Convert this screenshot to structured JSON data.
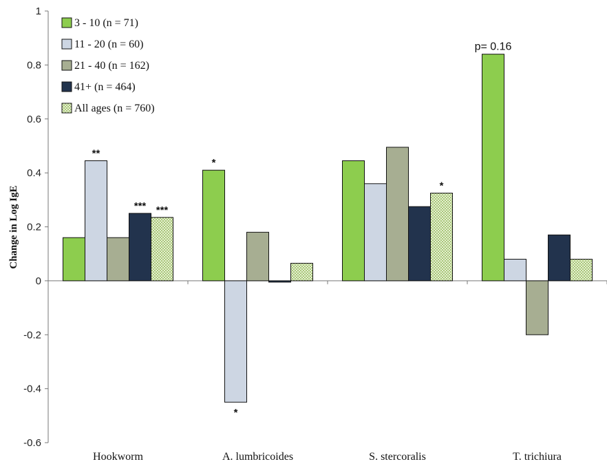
{
  "chart_data": {
    "type": "bar",
    "ylabel": "Change in Log IgE",
    "ylim": [
      -0.6,
      1
    ],
    "yticks": [
      "1",
      "0.8",
      "0.6",
      "0.4",
      "0.2",
      "0",
      "-0.2",
      "-0.4",
      "-0.6"
    ],
    "categories": [
      "Hookworm",
      "A. lumbricoides",
      "S. stercoralis",
      "T. trichiura"
    ],
    "legend_position": "top-left",
    "series": [
      {
        "name": "3 - 10 (n = 71)",
        "color": "#8dcd4e",
        "pattern": "solid",
        "values": [
          0.16,
          0.41,
          0.445,
          0.84
        ]
      },
      {
        "name": "11 - 20 (n = 60)",
        "color": "#cdd6e3",
        "pattern": "solid",
        "values": [
          0.445,
          -0.45,
          0.36,
          0.08
        ]
      },
      {
        "name": "21 - 40 (n = 162)",
        "color": "#a7ae92",
        "pattern": "solid",
        "values": [
          0.16,
          0.18,
          0.495,
          -0.2
        ]
      },
      {
        "name": "41+ (n = 464)",
        "color": "#22334d",
        "pattern": "solid",
        "values": [
          0.25,
          -0.005,
          0.275,
          0.17
        ]
      },
      {
        "name": "All ages (n = 760)",
        "color": "#c9dfa4",
        "pattern": "checker",
        "values": [
          0.235,
          0.065,
          0.325,
          0.08
        ]
      }
    ],
    "annotations": [
      {
        "category": 0,
        "series": 1,
        "text": "**"
      },
      {
        "category": 0,
        "series": 3,
        "text": "***"
      },
      {
        "category": 0,
        "series": 4,
        "text": "***"
      },
      {
        "category": 1,
        "series": 0,
        "text": "*"
      },
      {
        "category": 1,
        "series": 1,
        "text": "*"
      },
      {
        "category": 2,
        "series": 4,
        "text": "*"
      },
      {
        "category": 3,
        "series": 0,
        "text": "p= 0.16"
      }
    ]
  }
}
